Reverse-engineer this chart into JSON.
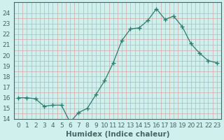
{
  "x": [
    0,
    1,
    2,
    3,
    4,
    5,
    6,
    7,
    8,
    9,
    10,
    11,
    12,
    13,
    14,
    15,
    16,
    17,
    18,
    19,
    20,
    21,
    22,
    23
  ],
  "y": [
    16.0,
    16.0,
    15.9,
    15.2,
    15.3,
    15.3,
    13.7,
    14.6,
    15.0,
    16.3,
    17.6,
    19.3,
    21.4,
    22.5,
    22.6,
    23.3,
    24.4,
    23.4,
    23.7,
    22.7,
    21.1,
    20.2,
    19.5,
    19.3
  ],
  "line_color": "#2e7d6e",
  "marker": "+",
  "marker_size": 4,
  "bg_color": "#cff0ec",
  "major_grid_color": "#aac8c4",
  "minor_grid_color": "#d4a8a8",
  "xlabel": "Humidex (Indice chaleur)",
  "ylim": [
    14,
    25
  ],
  "xlim": [
    -0.5,
    23.5
  ],
  "yticks": [
    14,
    15,
    16,
    17,
    18,
    19,
    20,
    21,
    22,
    23,
    24
  ],
  "xticks": [
    0,
    1,
    2,
    3,
    4,
    5,
    6,
    7,
    8,
    9,
    10,
    11,
    12,
    13,
    14,
    15,
    16,
    17,
    18,
    19,
    20,
    21,
    22,
    23
  ],
  "xlabel_fontsize": 7.5,
  "tick_fontsize": 6.5,
  "spine_color": "#446666",
  "line_width": 0.9,
  "marker_color": "#2e7d6e"
}
